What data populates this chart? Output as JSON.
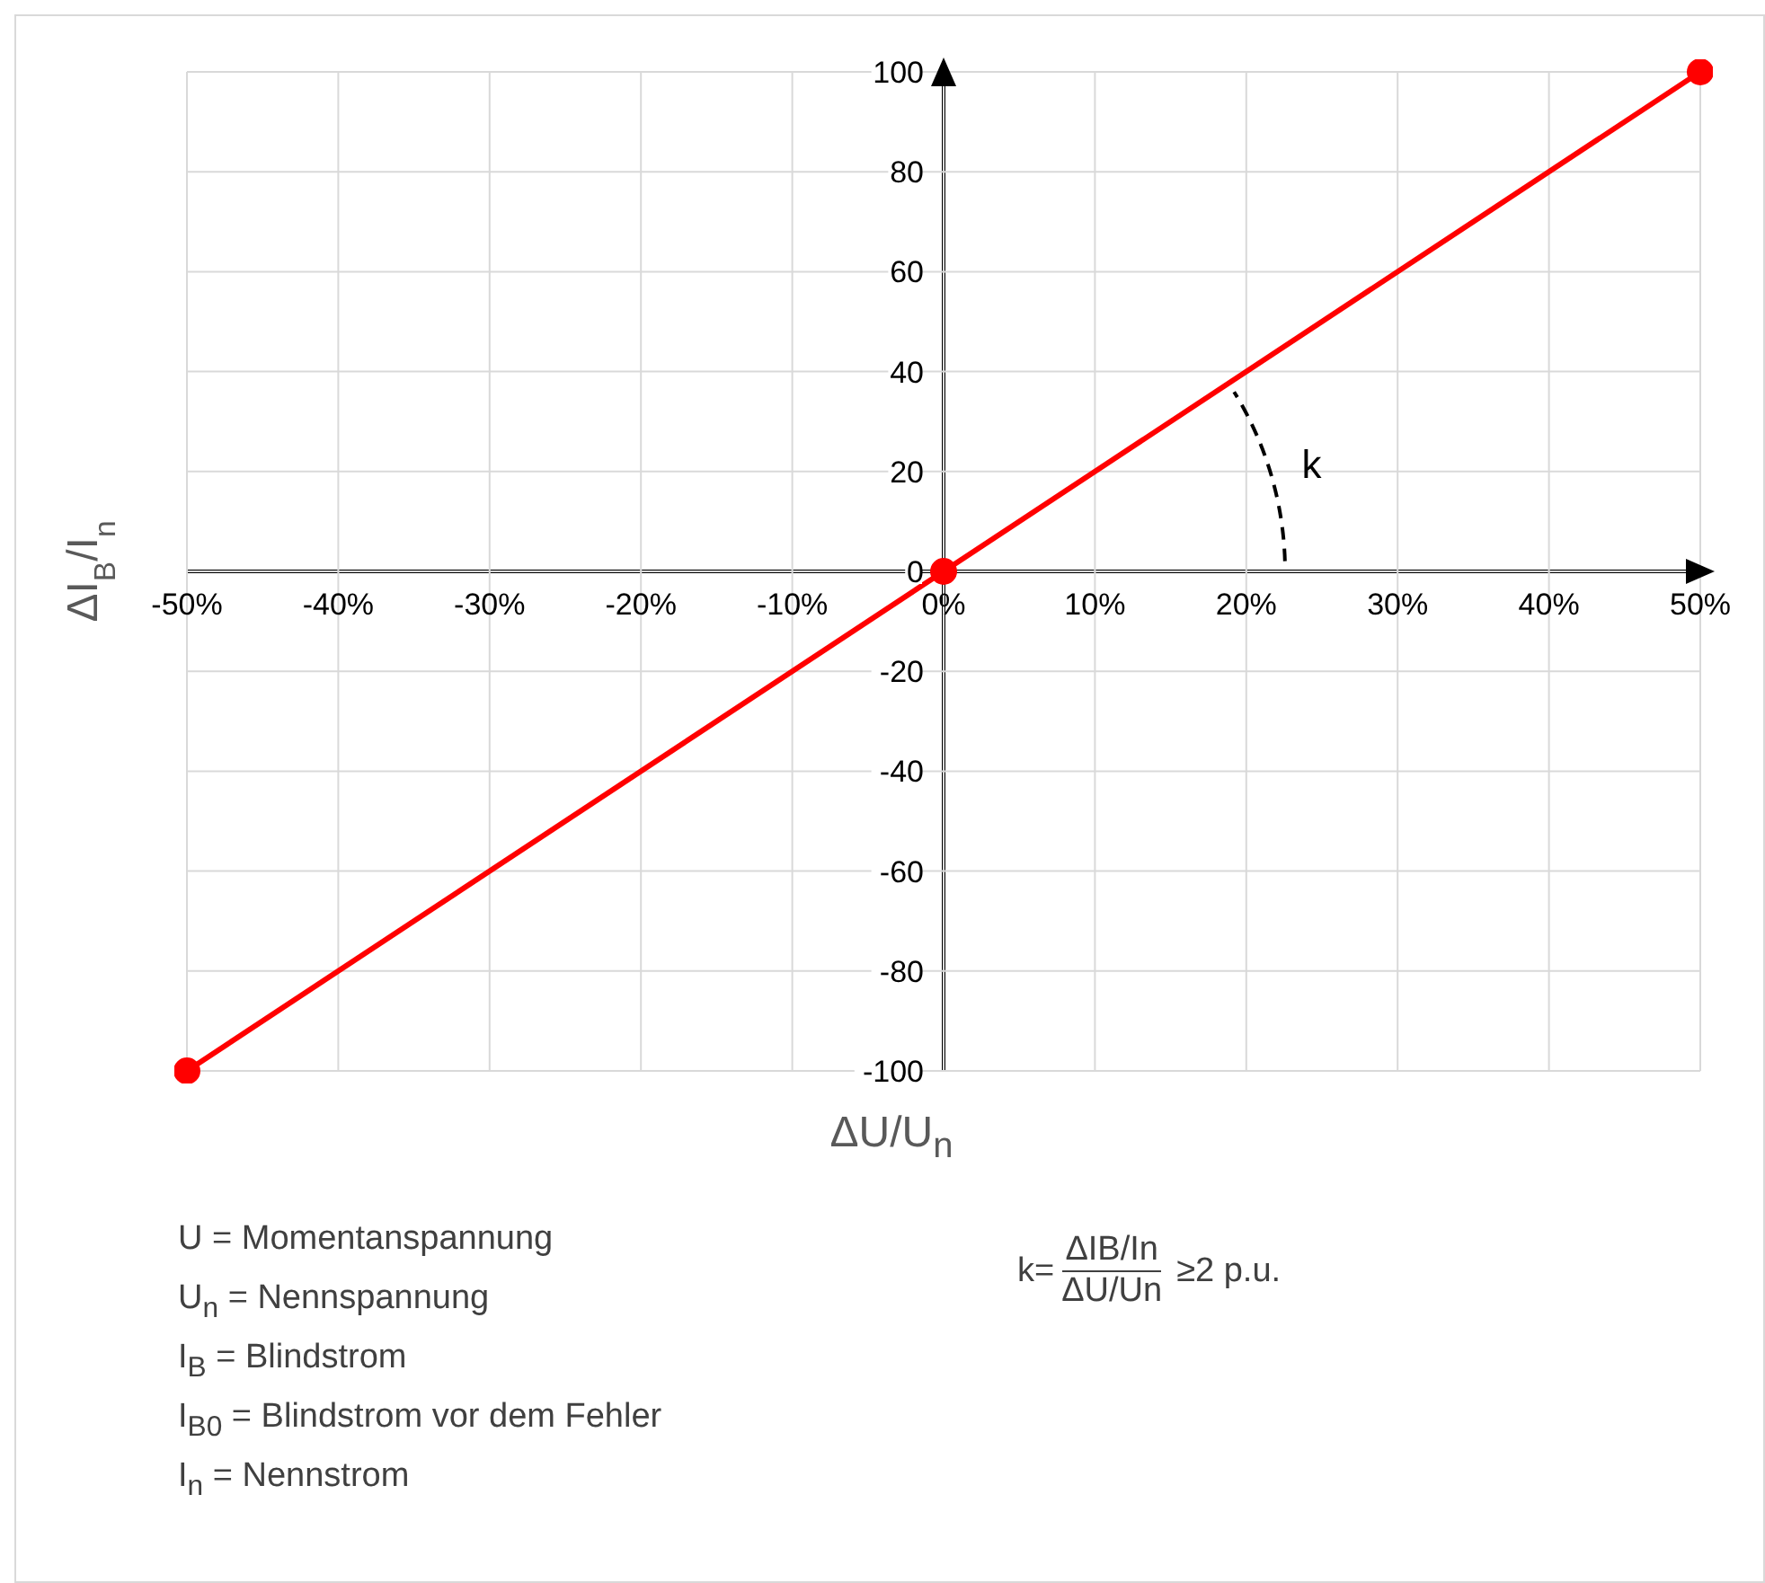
{
  "chart_data": {
    "type": "line",
    "xlabel": "ΔU/U$_{n}$",
    "ylabel": "ΔI$_{B}$/I$_{n}$",
    "x": [
      -50,
      0,
      50
    ],
    "series": [
      {
        "color": "#ff0000",
        "values": [
          -100,
          0,
          100
        ]
      }
    ],
    "xlim": [
      -50,
      50
    ],
    "xticks": [
      {
        "value": -50,
        "label": "-50%"
      },
      {
        "value": -40,
        "label": "-40%"
      },
      {
        "value": -30,
        "label": "-30%"
      },
      {
        "value": -20,
        "label": "-20%"
      },
      {
        "value": -10,
        "label": "-10%"
      },
      {
        "value": 0,
        "label": "0%"
      },
      {
        "value": 10,
        "label": "10%"
      },
      {
        "value": 20,
        "label": "20%"
      },
      {
        "value": 30,
        "label": "30%"
      },
      {
        "value": 40,
        "label": "40%"
      },
      {
        "value": 50,
        "label": "50%"
      }
    ],
    "ylim": [
      -100,
      100
    ],
    "yticks": [
      -100,
      -80,
      -60,
      -40,
      -20,
      0,
      20,
      40,
      60,
      80,
      100
    ],
    "grid": true,
    "marker": "circle",
    "line_style": "solid",
    "legend": false,
    "annotations": [
      "U = Momentanspannung",
      "U$_{n}$ = Nennspannung",
      "I$_{B}$ = Blindstrom",
      "I$_{B0}$ = Blindstrom vor dem Fehler",
      "I$_{n}$ = Nennstrom",
      "k",
      "k=",
      "ΔIB/In",
      "ΔU/Un",
      "≥2 p.u."
    ]
  }
}
